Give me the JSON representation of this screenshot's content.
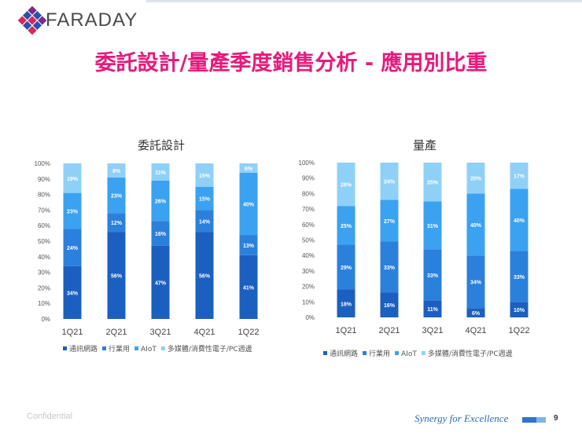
{
  "header": {
    "logo_text": "FARADAY",
    "title": "委託設計/量產季度銷售分析 - 應用別比重"
  },
  "colors": {
    "title": "#e8197c",
    "series": [
      "#1b5fc0",
      "#2b80dc",
      "#3aa2f0",
      "#8fd0f7"
    ]
  },
  "chart_data": [
    {
      "type": "bar",
      "stacked": true,
      "title": "委託設計",
      "categories": [
        "1Q21",
        "2Q21",
        "3Q21",
        "4Q21",
        "1Q22"
      ],
      "y_ticks": [
        "0%",
        "10%",
        "20%",
        "30%",
        "40%",
        "50%",
        "60%",
        "70%",
        "80%",
        "90%",
        "100%"
      ],
      "ylim": [
        0,
        100
      ],
      "legend_position": "bottom",
      "series": [
        {
          "name": "通訊網路",
          "values": [
            34,
            56,
            47,
            56,
            41
          ],
          "labels": [
            "34%",
            "56%",
            "47%",
            "56%",
            "41%"
          ]
        },
        {
          "name": "行業用",
          "values": [
            24,
            12,
            16,
            14,
            13
          ],
          "labels": [
            "24%",
            "12%",
            "16%",
            "14%",
            "13%"
          ]
        },
        {
          "name": "AIoT",
          "values": [
            23,
            23,
            26,
            15,
            40
          ],
          "labels": [
            "23%",
            "23%",
            "26%",
            "15%",
            "40%"
          ]
        },
        {
          "name": "多媒體/消費性電子/PC週邊",
          "values": [
            19,
            9,
            11,
            15,
            6
          ],
          "labels": [
            "19%",
            "9%",
            "11%",
            "15%",
            "6%"
          ]
        }
      ]
    },
    {
      "type": "bar",
      "stacked": true,
      "title": "量產",
      "categories": [
        "1Q21",
        "2Q21",
        "3Q21",
        "4Q21",
        "1Q22"
      ],
      "y_ticks": [
        "0%",
        "10%",
        "20%",
        "30%",
        "40%",
        "50%",
        "60%",
        "70%",
        "80%",
        "90%",
        "100%"
      ],
      "ylim": [
        0,
        100
      ],
      "legend_position": "bottom",
      "series": [
        {
          "name": "通訊網路",
          "values": [
            18,
            16,
            11,
            6,
            10
          ],
          "labels": [
            "18%",
            "16%",
            "11%",
            "6%",
            "10%"
          ]
        },
        {
          "name": "行業用",
          "values": [
            29,
            33,
            33,
            34,
            33
          ],
          "labels": [
            "29%",
            "33%",
            "33%",
            "34%",
            "33%"
          ]
        },
        {
          "name": "AIoT",
          "values": [
            25,
            27,
            31,
            40,
            40
          ],
          "labels": [
            "25%",
            "27%",
            "31%",
            "40%",
            "40%"
          ]
        },
        {
          "name": "多媒體/消費性電子/PC週邊",
          "values": [
            28,
            24,
            25,
            20,
            17
          ],
          "labels": [
            "28%",
            "24%",
            "25%",
            "20%",
            "17%"
          ]
        }
      ]
    }
  ],
  "footer": {
    "confidential": "Confidential",
    "slogan": "Synergy for Excellence",
    "page_number": "9"
  }
}
